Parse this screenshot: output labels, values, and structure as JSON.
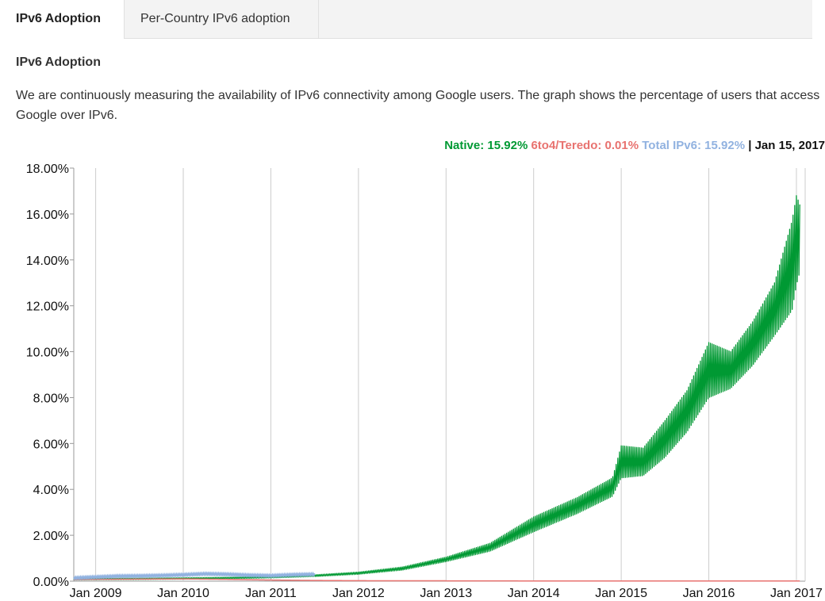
{
  "tabs": [
    {
      "label": "IPv6 Adoption",
      "active": true
    },
    {
      "label": "Per-Country IPv6 adoption",
      "active": false
    }
  ],
  "section_title": "IPv6 Adoption",
  "description": "We are continuously measuring the availability of IPv6 connectivity among Google users. The graph shows the percentage of users that access Google over IPv6.",
  "legend": {
    "native_label": "Native:",
    "native_value": "15.92%",
    "teredo_label": "6to4/Teredo:",
    "teredo_value": "0.01%",
    "total_label": "Total IPv6:",
    "total_value": "15.92%",
    "separator": "|",
    "date": "Jan 15, 2017"
  },
  "colors": {
    "native": "#009933",
    "teredo": "#e8726f",
    "total": "#91b2e0",
    "grid": "#cccccc"
  },
  "chart_data": {
    "type": "line",
    "title": "",
    "xlabel": "",
    "ylabel": "",
    "xlim": [
      2008.75,
      2017.1
    ],
    "ylim": [
      0,
      18
    ],
    "x_ticks": [
      {
        "label": "Jan 2009",
        "value": 2009.0
      },
      {
        "label": "Jan 2010",
        "value": 2010.0
      },
      {
        "label": "Jan 2011",
        "value": 2011.0
      },
      {
        "label": "Jan 2012",
        "value": 2012.0
      },
      {
        "label": "Jan 2013",
        "value": 2013.0
      },
      {
        "label": "Jan 2014",
        "value": 2014.0
      },
      {
        "label": "Jan 2015",
        "value": 2015.0
      },
      {
        "label": "Jan 2016",
        "value": 2016.0
      },
      {
        "label": "Jan 2017",
        "value": 2017.0
      }
    ],
    "y_ticks": [
      {
        "label": "0.00%",
        "value": 0
      },
      {
        "label": "2.00%",
        "value": 2
      },
      {
        "label": "4.00%",
        "value": 4
      },
      {
        "label": "6.00%",
        "value": 6
      },
      {
        "label": "8.00%",
        "value": 8
      },
      {
        "label": "10.00%",
        "value": 10
      },
      {
        "label": "12.00%",
        "value": 12
      },
      {
        "label": "14.00%",
        "value": 14
      },
      {
        "label": "16.00%",
        "value": 16
      },
      {
        "label": "18.00%",
        "value": 18
      }
    ],
    "grid": true,
    "legend_position": "top-right",
    "series": [
      {
        "name": "Native",
        "color": "#009933",
        "upper": [
          [
            2008.75,
            0.1
          ],
          [
            2009.0,
            0.12
          ],
          [
            2009.5,
            0.13
          ],
          [
            2010.0,
            0.15
          ],
          [
            2010.5,
            0.17
          ],
          [
            2011.0,
            0.19
          ],
          [
            2011.5,
            0.28
          ],
          [
            2012.0,
            0.4
          ],
          [
            2012.5,
            0.62
          ],
          [
            2013.0,
            1.05
          ],
          [
            2013.5,
            1.65
          ],
          [
            2014.0,
            2.8
          ],
          [
            2014.5,
            3.65
          ],
          [
            2014.9,
            4.5
          ],
          [
            2015.0,
            5.9
          ],
          [
            2015.25,
            5.8
          ],
          [
            2015.5,
            7.0
          ],
          [
            2015.75,
            8.3
          ],
          [
            2016.0,
            10.4
          ],
          [
            2016.25,
            10.0
          ],
          [
            2016.5,
            11.3
          ],
          [
            2016.75,
            13.0
          ],
          [
            2016.95,
            15.7
          ],
          [
            2017.0,
            16.8
          ],
          [
            2017.04,
            16.4
          ]
        ],
        "lower": [
          [
            2008.75,
            0.05
          ],
          [
            2009.0,
            0.06
          ],
          [
            2009.5,
            0.07
          ],
          [
            2010.0,
            0.09
          ],
          [
            2010.5,
            0.11
          ],
          [
            2011.0,
            0.14
          ],
          [
            2011.5,
            0.2
          ],
          [
            2012.0,
            0.3
          ],
          [
            2012.5,
            0.48
          ],
          [
            2013.0,
            0.85
          ],
          [
            2013.5,
            1.3
          ],
          [
            2014.0,
            2.15
          ],
          [
            2014.5,
            2.95
          ],
          [
            2014.9,
            3.7
          ],
          [
            2015.0,
            4.5
          ],
          [
            2015.25,
            4.6
          ],
          [
            2015.5,
            5.4
          ],
          [
            2015.75,
            6.5
          ],
          [
            2016.0,
            8.0
          ],
          [
            2016.25,
            8.4
          ],
          [
            2016.5,
            9.4
          ],
          [
            2016.75,
            10.7
          ],
          [
            2016.95,
            11.8
          ],
          [
            2017.0,
            12.9
          ],
          [
            2017.04,
            13.5
          ]
        ]
      },
      {
        "name": "6to4/Teredo",
        "color": "#e8726f",
        "values": [
          [
            2008.75,
            0.07
          ],
          [
            2009.0,
            0.08
          ],
          [
            2009.5,
            0.09
          ],
          [
            2010.0,
            0.1
          ],
          [
            2010.5,
            0.08
          ],
          [
            2011.0,
            0.05
          ],
          [
            2011.5,
            0.03
          ],
          [
            2012.0,
            0.02
          ],
          [
            2013.0,
            0.015
          ],
          [
            2014.0,
            0.01
          ],
          [
            2015.0,
            0.01
          ],
          [
            2016.0,
            0.01
          ],
          [
            2017.04,
            0.01
          ]
        ]
      },
      {
        "name": "Total IPv6",
        "color": "#91b2e0",
        "values": [
          [
            2008.75,
            0.14
          ],
          [
            2009.0,
            0.18
          ],
          [
            2009.25,
            0.22
          ],
          [
            2009.5,
            0.23
          ],
          [
            2009.75,
            0.25
          ],
          [
            2010.0,
            0.28
          ],
          [
            2010.25,
            0.32
          ],
          [
            2010.5,
            0.3
          ],
          [
            2010.75,
            0.26
          ],
          [
            2011.0,
            0.24
          ],
          [
            2011.25,
            0.28
          ],
          [
            2011.5,
            0.3
          ]
        ]
      }
    ]
  }
}
